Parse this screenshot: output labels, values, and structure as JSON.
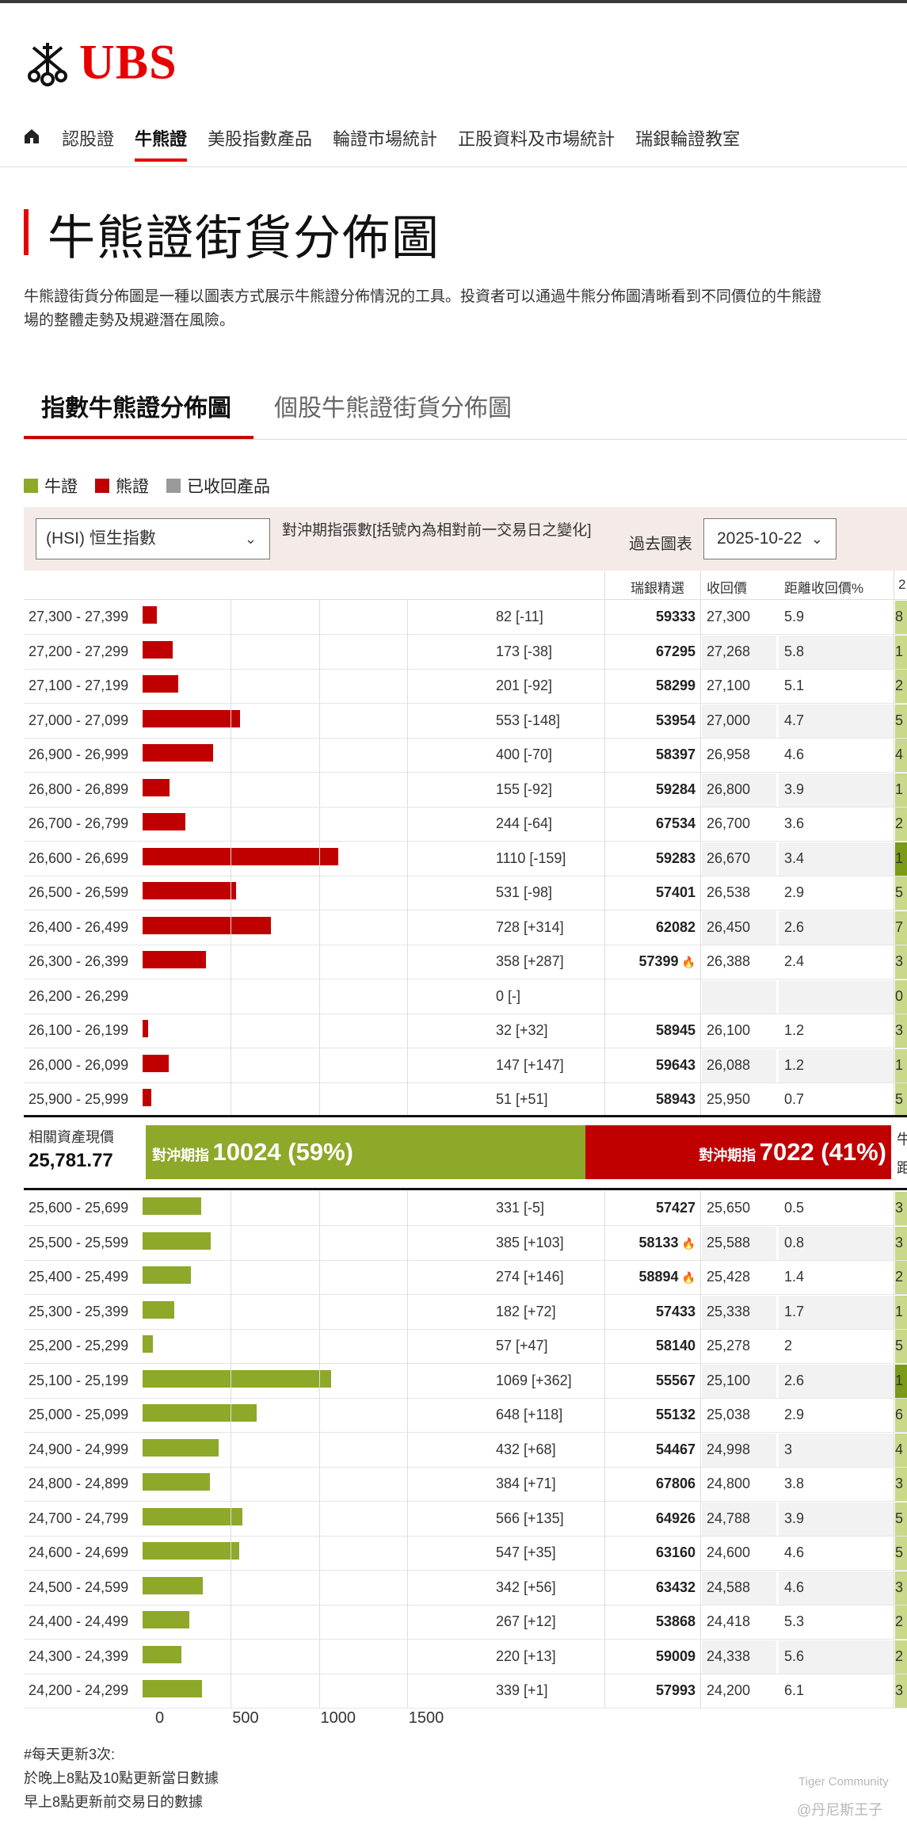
{
  "brand": {
    "name": "UBS",
    "accent": "#e60000"
  },
  "nav": {
    "items": [
      "認股證",
      "牛熊證",
      "美股指數產品",
      "輪證市場統計",
      "正股資料及市場統計",
      "瑞銀輪證教室"
    ],
    "active": "牛熊證"
  },
  "page": {
    "title": "牛熊證街貨分佈圖",
    "description_line1": "牛熊證街貨分佈圖是一種以圖表方式展示牛熊證分佈情況的工具。投資者可以通過牛熊分佈圖清晰看到不同價位的牛熊證",
    "description_line2": "場的整體走勢及規避潛在風險。"
  },
  "tabs": {
    "index": "指數牛熊證分佈圖",
    "stock": "個股牛熊證街貨分佈圖"
  },
  "legend": {
    "bull": "牛證",
    "bear": "熊證",
    "called": "已收回產品",
    "colors": {
      "bull": "#8ea829",
      "bear": "#c00000",
      "called": "#9a9a9a"
    }
  },
  "controls": {
    "index_select": "(HSI) 恒生指數",
    "hedge_label": "對沖期指張數[括號內為相對前一交易日之變化]",
    "past_label": "過去圖表",
    "date": "2025-10-22"
  },
  "columns": {
    "pick": "瑞銀精選",
    "call_price": "收回價",
    "distance": "距離收回價%",
    "edge": "2"
  },
  "chart_data": {
    "type": "bar",
    "orientation": "horizontal",
    "x_ticks": [
      "0",
      "500",
      "1000",
      "1500"
    ],
    "xlim": [
      0,
      2000
    ],
    "bear_rows": [
      {
        "range": "27,300 - 27,399",
        "value": 82,
        "count": "82 [-11]",
        "code": "59333",
        "fire": false,
        "call_price": "27,300",
        "distance": "5.9",
        "edge": "8"
      },
      {
        "range": "27,200 - 27,299",
        "value": 173,
        "count": "173 [-38]",
        "code": "67295",
        "fire": false,
        "call_price": "27,268",
        "distance": "5.8",
        "edge": "1"
      },
      {
        "range": "27,100 - 27,199",
        "value": 201,
        "count": "201 [-92]",
        "code": "58299",
        "fire": false,
        "call_price": "27,100",
        "distance": "5.1",
        "edge": "2"
      },
      {
        "range": "27,000 - 27,099",
        "value": 553,
        "count": "553 [-148]",
        "code": "53954",
        "fire": false,
        "call_price": "27,000",
        "distance": "4.7",
        "edge": "5"
      },
      {
        "range": "26,900 - 26,999",
        "value": 400,
        "count": "400 [-70]",
        "code": "58397",
        "fire": false,
        "call_price": "26,958",
        "distance": "4.6",
        "edge": "4"
      },
      {
        "range": "26,800 - 26,899",
        "value": 155,
        "count": "155 [-92]",
        "code": "59284",
        "fire": false,
        "call_price": "26,800",
        "distance": "3.9",
        "edge": "1"
      },
      {
        "range": "26,700 - 26,799",
        "value": 244,
        "count": "244 [-64]",
        "code": "67534",
        "fire": false,
        "call_price": "26,700",
        "distance": "3.6",
        "edge": "2"
      },
      {
        "range": "26,600 - 26,699",
        "value": 1110,
        "count": "1110 [-159]",
        "code": "59283",
        "fire": false,
        "call_price": "26,670",
        "distance": "3.4",
        "edge": "1"
      },
      {
        "range": "26,500 - 26,599",
        "value": 531,
        "count": "531 [-98]",
        "code": "57401",
        "fire": false,
        "call_price": "26,538",
        "distance": "2.9",
        "edge": "5"
      },
      {
        "range": "26,400 - 26,499",
        "value": 728,
        "count": "728 [+314]",
        "code": "62082",
        "fire": false,
        "call_price": "26,450",
        "distance": "2.6",
        "edge": "7"
      },
      {
        "range": "26,300 - 26,399",
        "value": 358,
        "count": "358 [+287]",
        "code": "57399",
        "fire": true,
        "call_price": "26,388",
        "distance": "2.4",
        "edge": "3"
      },
      {
        "range": "26,200 - 26,299",
        "value": 0,
        "count": "0 [-]",
        "code": "",
        "fire": false,
        "call_price": "",
        "distance": "",
        "edge": "0"
      },
      {
        "range": "26,100 - 26,199",
        "value": 32,
        "count": "32 [+32]",
        "code": "58945",
        "fire": false,
        "call_price": "26,100",
        "distance": "1.2",
        "edge": "3"
      },
      {
        "range": "26,000 - 26,099",
        "value": 147,
        "count": "147 [+147]",
        "code": "59643",
        "fire": false,
        "call_price": "26,088",
        "distance": "1.2",
        "edge": "1"
      },
      {
        "range": "25,900 - 25,999",
        "value": 51,
        "count": "51 [+51]",
        "code": "58943",
        "fire": false,
        "call_price": "25,950",
        "distance": "0.7",
        "edge": "5"
      }
    ],
    "bull_rows": [
      {
        "range": "25,600 - 25,699",
        "value": 331,
        "count": "331 [-5]",
        "code": "57427",
        "fire": false,
        "call_price": "25,650",
        "distance": "0.5",
        "edge": "3"
      },
      {
        "range": "25,500 - 25,599",
        "value": 385,
        "count": "385 [+103]",
        "code": "58133",
        "fire": true,
        "call_price": "25,588",
        "distance": "0.8",
        "edge": "3"
      },
      {
        "range": "25,400 - 25,499",
        "value": 274,
        "count": "274 [+146]",
        "code": "58894",
        "fire": true,
        "call_price": "25,428",
        "distance": "1.4",
        "edge": "2"
      },
      {
        "range": "25,300 - 25,399",
        "value": 182,
        "count": "182 [+72]",
        "code": "57433",
        "fire": false,
        "call_price": "25,338",
        "distance": "1.7",
        "edge": "1"
      },
      {
        "range": "25,200 - 25,299",
        "value": 57,
        "count": "57 [+47]",
        "code": "58140",
        "fire": false,
        "call_price": "25,278",
        "distance": "2",
        "edge": "5"
      },
      {
        "range": "25,100 - 25,199",
        "value": 1069,
        "count": "1069 [+362]",
        "code": "55567",
        "fire": false,
        "call_price": "25,100",
        "distance": "2.6",
        "edge": "1"
      },
      {
        "range": "25,000 - 25,099",
        "value": 648,
        "count": "648 [+118]",
        "code": "55132",
        "fire": false,
        "call_price": "25,038",
        "distance": "2.9",
        "edge": "6"
      },
      {
        "range": "24,900 - 24,999",
        "value": 432,
        "count": "432 [+68]",
        "code": "54467",
        "fire": false,
        "call_price": "24,998",
        "distance": "3",
        "edge": "4"
      },
      {
        "range": "24,800 - 24,899",
        "value": 384,
        "count": "384 [+71]",
        "code": "67806",
        "fire": false,
        "call_price": "24,800",
        "distance": "3.8",
        "edge": "3"
      },
      {
        "range": "24,700 - 24,799",
        "value": 566,
        "count": "566 [+135]",
        "code": "64926",
        "fire": false,
        "call_price": "24,788",
        "distance": "3.9",
        "edge": "5"
      },
      {
        "range": "24,600 - 24,699",
        "value": 547,
        "count": "547 [+35]",
        "code": "63160",
        "fire": false,
        "call_price": "24,600",
        "distance": "4.6",
        "edge": "5"
      },
      {
        "range": "24,500 - 24,599",
        "value": 342,
        "count": "342 [+56]",
        "code": "63432",
        "fire": false,
        "call_price": "24,588",
        "distance": "4.6",
        "edge": "3"
      },
      {
        "range": "24,400 - 24,499",
        "value": 267,
        "count": "267 [+12]",
        "code": "53868",
        "fire": false,
        "call_price": "24,418",
        "distance": "5.3",
        "edge": "2"
      },
      {
        "range": "24,300 - 24,399",
        "value": 220,
        "count": "220 [+13]",
        "code": "59009",
        "fire": false,
        "call_price": "24,338",
        "distance": "5.6",
        "edge": "2"
      },
      {
        "range": "24,200 - 24,299",
        "value": 339,
        "count": "339 [+1]",
        "code": "57993",
        "fire": false,
        "call_price": "24,200",
        "distance": "6.1",
        "edge": "3"
      }
    ]
  },
  "summary": {
    "spot_label": "相關資產現價",
    "spot_value": "25,781.77",
    "bull_label": "對沖期指",
    "bull_value": "10024 (59%)",
    "bull_share": 0.59,
    "bear_label": "對沖期指",
    "bear_value": "7022 (41%)",
    "edge_cn_1": "牛",
    "edge_cn_2": "距"
  },
  "notes": {
    "line1": "#每天更新3次:",
    "line2": "於晚上8點及10點更新當日數據",
    "line3": "早上8點更新前交易日的數據"
  },
  "watermark": {
    "line1": "Tiger Community",
    "line2": "@丹尼斯王子"
  }
}
